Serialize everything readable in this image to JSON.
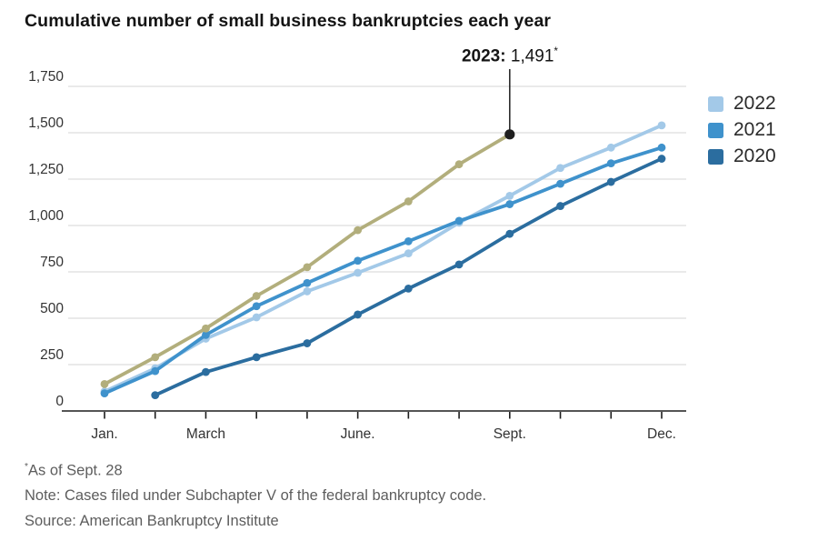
{
  "title": "Cumulative number of small business bankruptcies each year",
  "annotation": {
    "series": "2023",
    "month": 9,
    "value": 1491,
    "year_label": "2023:",
    "value_label": "1,491",
    "asterisk": "*"
  },
  "legend": [
    {
      "label": "2022",
      "color": "#a3c9e8"
    },
    {
      "label": "2021",
      "color": "#3f92cc"
    },
    {
      "label": "2020",
      "color": "#2b6d9f"
    }
  ],
  "footnotes": {
    "asterisk": "*",
    "as_of": "As of Sept. 28",
    "note": "Note: Cases filed under Subchapter V of the federal bankruptcy code.",
    "source": "Source: American Bankruptcy Institute"
  },
  "colors": {
    "series_2023": "#b2ae7c",
    "series_2022": "#a3c9e8",
    "series_2021": "#3f92cc",
    "series_2020": "#2b6d9f",
    "annotation_dot": "#1f1f1f",
    "gridline": "#e4e4e4",
    "axis": "#1d1d1d",
    "tick_label": "#333333"
  },
  "chart_data": {
    "type": "line",
    "title": "Cumulative number of small business bankruptcies each year",
    "xlabel": "",
    "ylabel": "",
    "ylim": [
      0,
      1750
    ],
    "y_ticks": [
      {
        "value": 0,
        "label": "0"
      },
      {
        "value": 250,
        "label": "250"
      },
      {
        "value": 500,
        "label": "500"
      },
      {
        "value": 750,
        "label": "750"
      },
      {
        "value": 1000,
        "label": "1,000"
      },
      {
        "value": 1250,
        "label": "1,250"
      },
      {
        "value": 1500,
        "label": "1,500"
      },
      {
        "value": 1750,
        "label": "1,750"
      }
    ],
    "x_tick_months": [
      1,
      2,
      3,
      4,
      5,
      6,
      7,
      8,
      9,
      10,
      11,
      12
    ],
    "x_labels": [
      {
        "month": 1,
        "label": "Jan."
      },
      {
        "month": 3,
        "label": "March"
      },
      {
        "month": 6,
        "label": "June."
      },
      {
        "month": 9,
        "label": "Sept."
      },
      {
        "month": 12,
        "label": "Dec."
      }
    ],
    "legend_position": "right",
    "grid": true,
    "series": [
      {
        "name": "2022",
        "color": "#a3c9e8",
        "months": [
          1,
          2,
          3,
          4,
          5,
          6,
          7,
          8,
          9,
          10,
          11,
          12
        ],
        "values": [
          105,
          230,
          390,
          505,
          645,
          745,
          850,
          1015,
          1160,
          1310,
          1420,
          1540
        ]
      },
      {
        "name": "2021",
        "color": "#3f92cc",
        "months": [
          1,
          2,
          3,
          4,
          5,
          6,
          7,
          8,
          9,
          10,
          11,
          12
        ],
        "values": [
          95,
          215,
          410,
          565,
          690,
          810,
          915,
          1025,
          1115,
          1225,
          1335,
          1420
        ]
      },
      {
        "name": "2020",
        "color": "#2b6d9f",
        "months": [
          2,
          3,
          4,
          5,
          6,
          7,
          8,
          9,
          10,
          11,
          12
        ],
        "values": [
          85,
          210,
          290,
          365,
          520,
          660,
          790,
          955,
          1105,
          1235,
          1360
        ]
      },
      {
        "name": "2023",
        "color": "#b2ae7c",
        "months": [
          1,
          2,
          3,
          4,
          5,
          6,
          7,
          8,
          9
        ],
        "values": [
          145,
          290,
          445,
          620,
          775,
          975,
          1130,
          1330,
          1491
        ]
      }
    ]
  }
}
